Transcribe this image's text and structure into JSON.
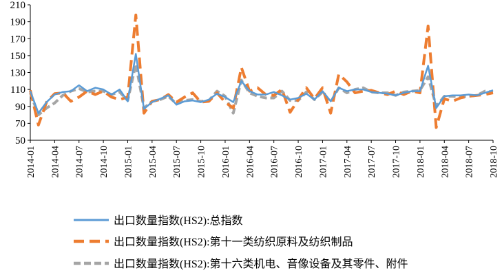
{
  "chart_data": {
    "type": "line",
    "title": "",
    "xlabel": "",
    "ylabel": "",
    "ylim": [
      50,
      210
    ],
    "yticks": [
      50,
      70,
      90,
      110,
      130,
      150,
      170,
      190,
      210
    ],
    "grid": false,
    "legend_position": "bottom",
    "x": [
      "2014-01",
      "2014-02",
      "2014-03",
      "2014-04",
      "2014-05",
      "2014-06",
      "2014-07",
      "2014-08",
      "2014-09",
      "2014-10",
      "2014-11",
      "2014-12",
      "2015-01",
      "2015-02",
      "2015-03",
      "2015-04",
      "2015-05",
      "2015-06",
      "2015-07",
      "2015-08",
      "2015-09",
      "2015-10",
      "2015-11",
      "2015-12",
      "2016-01",
      "2016-02",
      "2016-03",
      "2016-04",
      "2016-05",
      "2016-06",
      "2016-07",
      "2016-08",
      "2016-09",
      "2016-10",
      "2016-11",
      "2016-12",
      "2017-01",
      "2017-02",
      "2017-03",
      "2017-04",
      "2017-05",
      "2017-06",
      "2017-07",
      "2017-08",
      "2017-09",
      "2017-10",
      "2017-11",
      "2017-12",
      "2018-01",
      "2018-02",
      "2018-03",
      "2018-04",
      "2018-05",
      "2018-06",
      "2018-07",
      "2018-08",
      "2018-09",
      "2018-10"
    ],
    "xticks": [
      "2014-01",
      "2014-04",
      "2014-07",
      "2014-10",
      "2015-01",
      "2015-04",
      "2015-07",
      "2015-10",
      "2016-01",
      "2016-04",
      "2016-07",
      "2016-10",
      "2017-01",
      "2017-04",
      "2017-07",
      "2017-10",
      "2018-01",
      "2018-04",
      "2018-07",
      "2018-10"
    ],
    "series": [
      {
        "name": "出口数量指数(HS2):总指数",
        "color": "#5b9bd5",
        "style": "solid",
        "values": [
          108,
          82,
          95,
          104,
          107,
          108,
          115,
          108,
          112,
          110,
          104,
          110,
          96,
          152,
          87,
          95,
          99,
          103,
          92,
          96,
          97,
          95,
          98,
          105,
          101,
          95,
          120,
          108,
          104,
          104,
          107,
          103,
          98,
          100,
          105,
          98,
          108,
          96,
          112,
          108,
          110,
          110,
          107,
          106,
          105,
          103,
          106,
          108,
          108,
          138,
          88,
          102,
          103,
          103,
          104,
          103,
          106,
          109
        ]
      },
      {
        "name": "出口数量指数(HS2):第十一类纺织原料及纺织制品",
        "color": "#ed7d31",
        "style": "dashed",
        "values": [
          109,
          68,
          95,
          105,
          106,
          96,
          101,
          108,
          104,
          108,
          101,
          98,
          101,
          198,
          82,
          96,
          98,
          104,
          95,
          101,
          106,
          95,
          96,
          106,
          95,
          88,
          136,
          108,
          112,
          104,
          103,
          110,
          83,
          98,
          112,
          99,
          112,
          82,
          128,
          119,
          106,
          108,
          109,
          106,
          104,
          108,
          104,
          108,
          106,
          185,
          65,
          99,
          96,
          100,
          102,
          103,
          104,
          106
        ]
      },
      {
        "name": "出口数量指数(HS2):第十六类机电、音像设备及其零件、附件",
        "color": "#a5a5a5",
        "style": "dashed",
        "values": [
          106,
          80,
          88,
          94,
          103,
          108,
          111,
          107,
          108,
          108,
          104,
          107,
          97,
          140,
          88,
          96,
          98,
          102,
          93,
          97,
          98,
          96,
          97,
          108,
          102,
          82,
          121,
          106,
          102,
          100,
          100,
          108,
          97,
          97,
          107,
          98,
          107,
          95,
          112,
          106,
          110,
          112,
          107,
          106,
          106,
          103,
          107,
          108,
          109,
          125,
          90,
          102,
          102,
          101,
          102,
          103,
          108,
          107
        ]
      }
    ]
  }
}
